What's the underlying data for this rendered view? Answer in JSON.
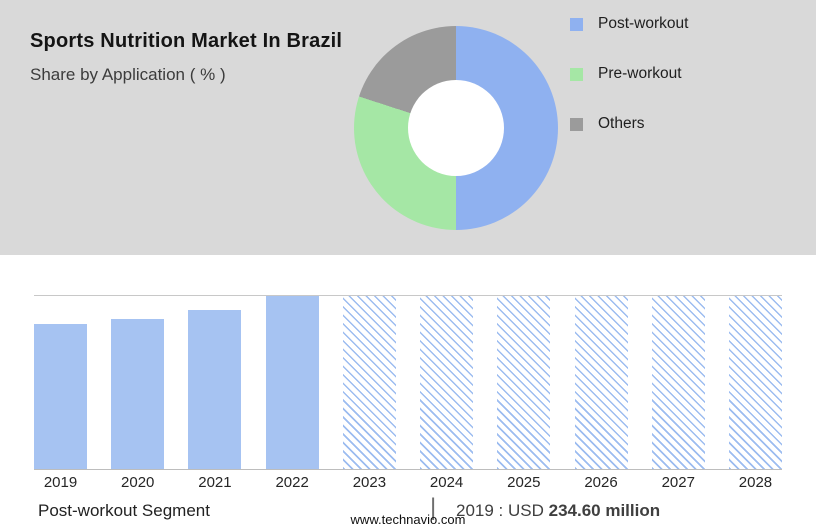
{
  "header": {
    "title": "Sports Nutrition Market In Brazil",
    "subtitle": "Share by Application ( % )"
  },
  "colors": {
    "header_bg": "#d9d9d9",
    "post_workout_blue": "#8fb1f0",
    "pre_workout_green": "#a5e7a5",
    "others_gray": "#9b9b9b",
    "bar_blue": "#a6c3f2",
    "gridline": "#c8c8c8"
  },
  "chart_data": [
    {
      "type": "pie",
      "subtype": "donut",
      "title": "Share by Application ( % )",
      "labels": [
        "Post-workout",
        "Pre-workout",
        "Others"
      ],
      "values": [
        50,
        30,
        20
      ],
      "colors": [
        "#8fb1f0",
        "#a5e7a5",
        "#9b9b9b"
      ],
      "legend_position": "right",
      "start_angle": "top, clockwise"
    },
    {
      "type": "bar",
      "categories": [
        "2019",
        "2020",
        "2021",
        "2022",
        "2023",
        "2024",
        "2025",
        "2026",
        "2027",
        "2028"
      ],
      "values": [
        84,
        87,
        92,
        100,
        100,
        100,
        100,
        100,
        100,
        100
      ],
      "values_note": "relative bar heights in % of plot height; no y-axis ticks shown",
      "forecast_categories": [
        "2023",
        "2024",
        "2025",
        "2026",
        "2027",
        "2028"
      ],
      "bar_style_actual": "solid",
      "bar_style_forecast": "hatched",
      "known_values": {
        "2019": "USD 234.60 million"
      },
      "xlabel": "",
      "ylabel": "",
      "grid": "top line and baseline only",
      "legend_position": "none"
    }
  ],
  "footer": {
    "segment_label": "Post-workout Segment",
    "separator": "|",
    "value_prefix": "2019 : USD ",
    "value_bold": "234.60 million",
    "website": "www.technavio.com"
  }
}
